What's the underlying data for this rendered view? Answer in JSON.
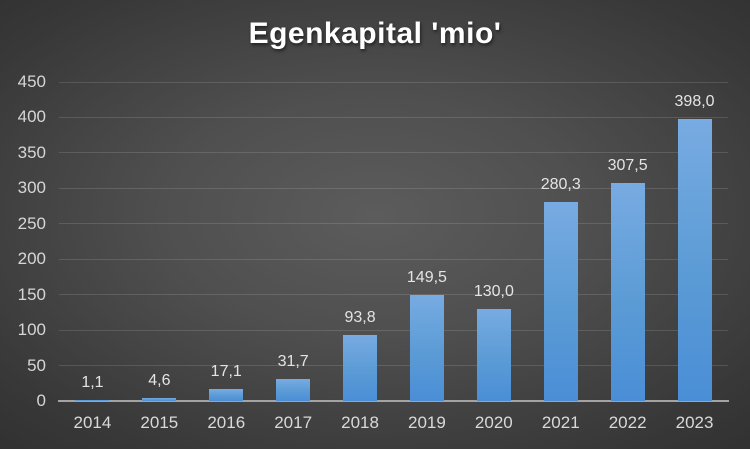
{
  "chart_data": {
    "type": "bar",
    "title": "Egenkapital 'mio'",
    "xlabel": "",
    "ylabel": "",
    "categories": [
      "2014",
      "2015",
      "2016",
      "2017",
      "2018",
      "2019",
      "2020",
      "2021",
      "2022",
      "2023"
    ],
    "values": [
      1.1,
      4.6,
      17.1,
      31.7,
      93.8,
      149.5,
      130.0,
      280.3,
      307.5,
      398.0
    ],
    "value_labels": [
      "1,1",
      "4,6",
      "17,1",
      "31,7",
      "93,8",
      "149,5",
      "130,0",
      "280,3",
      "307,5",
      "398,0"
    ],
    "y_ticks": [
      0,
      50,
      100,
      150,
      200,
      250,
      300,
      350,
      400,
      450
    ],
    "ylim": [
      0,
      450
    ],
    "grid": "horizontal",
    "legend": "none",
    "decimal_separator": ",",
    "colors": {
      "bar_fill_top": "#78abe2",
      "bar_fill": "#5b9bd5",
      "bar_fill_bottom": "#4a8ed6",
      "background_center": "#5c5c5c",
      "background_edge": "#262626",
      "gridline": "#6a6a6a",
      "axis_line": "#a3a3a3",
      "title_text": "#ffffff",
      "tick_text": "#d9d9d9",
      "data_label_text": "#e4e4e4"
    }
  }
}
